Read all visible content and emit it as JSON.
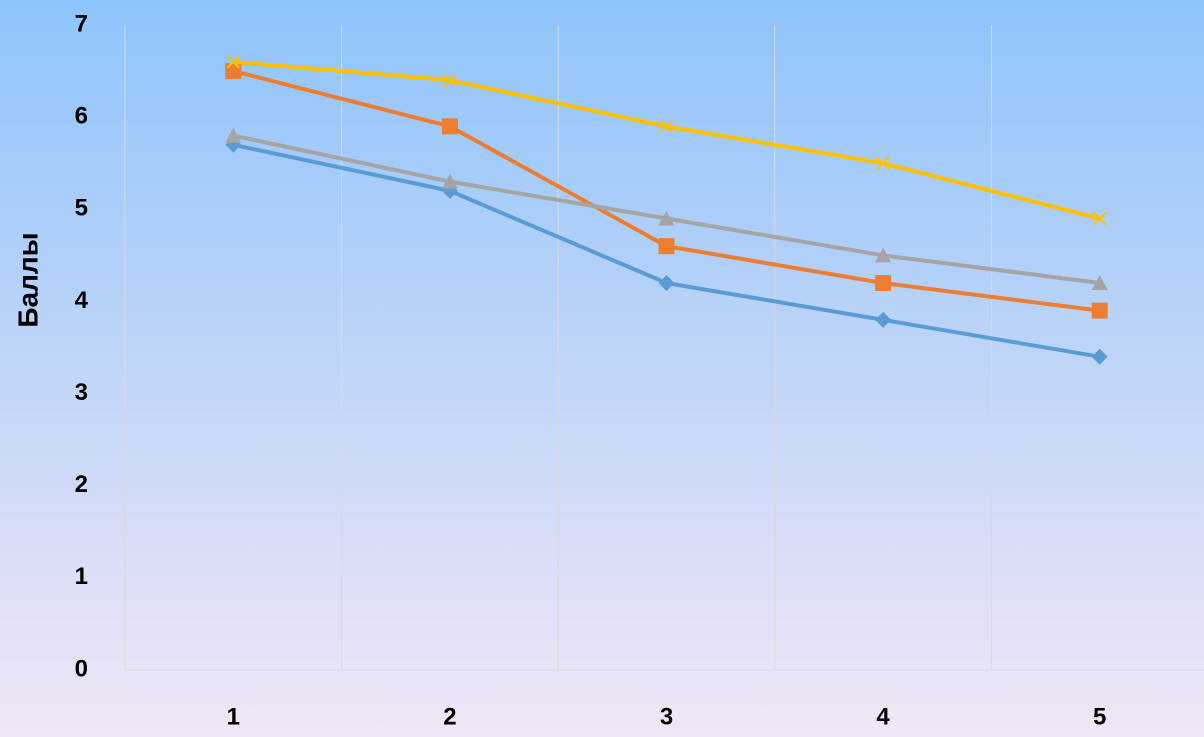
{
  "chart_data": {
    "type": "line",
    "y_label": "Баллы",
    "categories": [
      "1",
      "2",
      "3",
      "4",
      "5"
    ],
    "series": [
      {
        "color": "#5b9bd5",
        "marker": "diamond",
        "values": [
          5.7,
          5.2,
          4.2,
          3.8,
          3.4
        ]
      },
      {
        "color": "#ed7d31",
        "marker": "square",
        "values": [
          6.5,
          5.9,
          4.6,
          4.2,
          3.9
        ]
      },
      {
        "color": "#a5a5a5",
        "marker": "triangle",
        "values": [
          5.8,
          5.3,
          4.9,
          4.5,
          4.2
        ]
      },
      {
        "color": "#ffc000",
        "marker": "x",
        "values": [
          6.6,
          6.4,
          5.9,
          5.5,
          4.9
        ]
      }
    ],
    "ylim": [
      0,
      7
    ],
    "yticks": [
      0,
      1,
      2,
      3,
      4,
      5,
      6,
      7
    ],
    "grid": true
  }
}
